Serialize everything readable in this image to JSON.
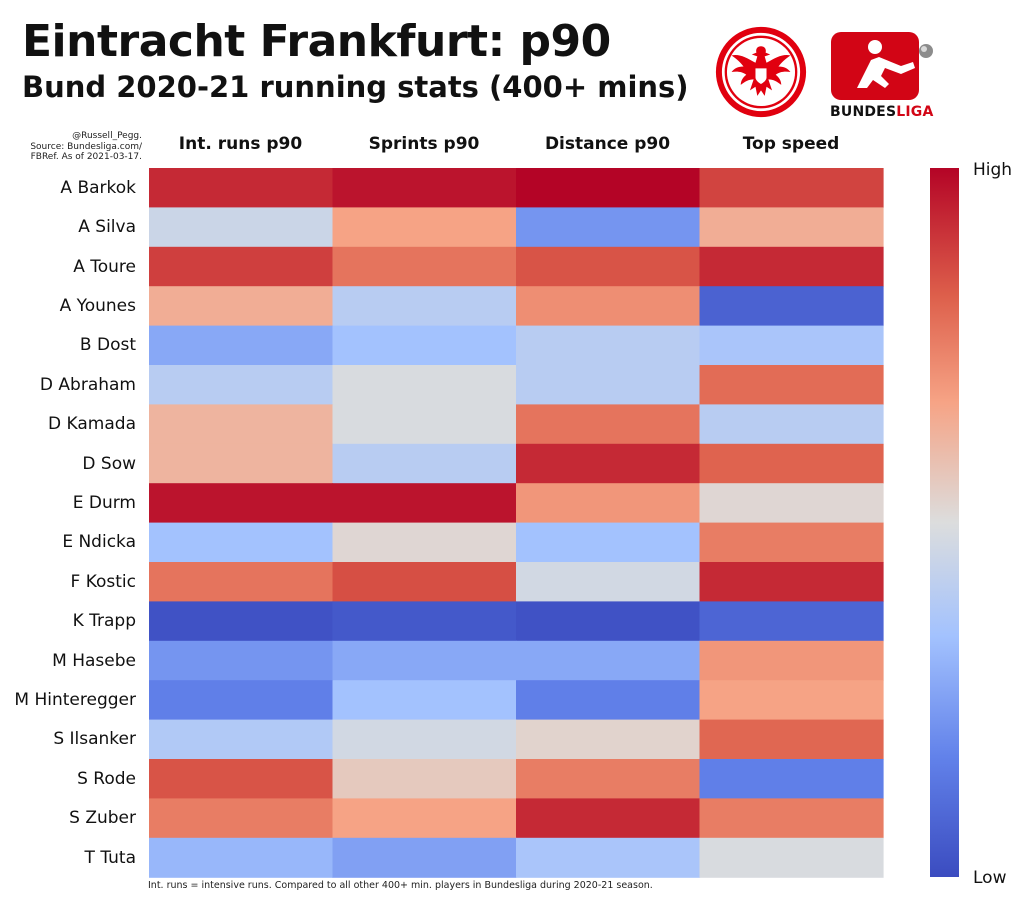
{
  "header": {
    "title": "Eintracht Frankfurt: p90",
    "subtitle": "Bund 2020-21 running stats (400+ mins)",
    "source_lines": [
      "@Russell_Pegg.",
      "Source: Bundesliga.com/",
      "FBRef. As of 2021-03-17."
    ],
    "footnote": "Int. runs = intensive runs. Compared to all other 400+ min. players in Bundesliga during 2020-21 season."
  },
  "logos": {
    "crest_icon": "eintracht-frankfurt-eagle-crest",
    "league_icon": "bundesliga-logo",
    "league_text_a": "BUNDES",
    "league_text_b": "LIGA"
  },
  "colors": {
    "high": "#b40426",
    "mid": "#dcdddd",
    "low": "#3b4cc0",
    "crest_red": "#e1000f"
  },
  "colorbar": {
    "high_label": "High",
    "low_label": "Low"
  },
  "chart_data": {
    "type": "heatmap",
    "title": "Eintracht Frankfurt: p90",
    "subtitle": "Bund 2020-21 running stats (400+ mins)",
    "columns": [
      "Int. runs p90",
      "Sprints p90",
      "Distance p90",
      "Top speed"
    ],
    "rows": [
      "A Barkok",
      "A Silva",
      "A Toure",
      "A Younes",
      "B Dost",
      "D Abraham",
      "D Kamada",
      "D Sow",
      "E Durm",
      "E Ndicka",
      "F Kostic",
      "K Trapp",
      "M Hasebe",
      "M Hinteregger",
      "S Ilsanker",
      "S Rode",
      "S Zuber",
      "T Tuta"
    ],
    "scale": "relative (0 = Low, 1 = High)",
    "values": [
      [
        0.93,
        0.97,
        1.0,
        0.88
      ],
      [
        0.45,
        0.67,
        0.22,
        0.64
      ],
      [
        0.89,
        0.78,
        0.85,
        0.93
      ],
      [
        0.64,
        0.4,
        0.72,
        0.07
      ],
      [
        0.27,
        0.34,
        0.4,
        0.36
      ],
      [
        0.4,
        0.49,
        0.4,
        0.8
      ],
      [
        0.62,
        0.49,
        0.78,
        0.4
      ],
      [
        0.62,
        0.4,
        0.93,
        0.82
      ],
      [
        0.97,
        0.97,
        0.7,
        0.52
      ],
      [
        0.34,
        0.52,
        0.34,
        0.76
      ],
      [
        0.78,
        0.86,
        0.47,
        0.93
      ],
      [
        0.02,
        0.04,
        0.02,
        0.08
      ],
      [
        0.22,
        0.27,
        0.27,
        0.7
      ],
      [
        0.16,
        0.34,
        0.16,
        0.67
      ],
      [
        0.38,
        0.47,
        0.53,
        0.81
      ],
      [
        0.85,
        0.56,
        0.76,
        0.16
      ],
      [
        0.76,
        0.67,
        0.93,
        0.76
      ],
      [
        0.31,
        0.25,
        0.36,
        0.49
      ]
    ],
    "colorbar": {
      "high": "High",
      "low": "Low"
    },
    "colormap": "coolwarm"
  }
}
